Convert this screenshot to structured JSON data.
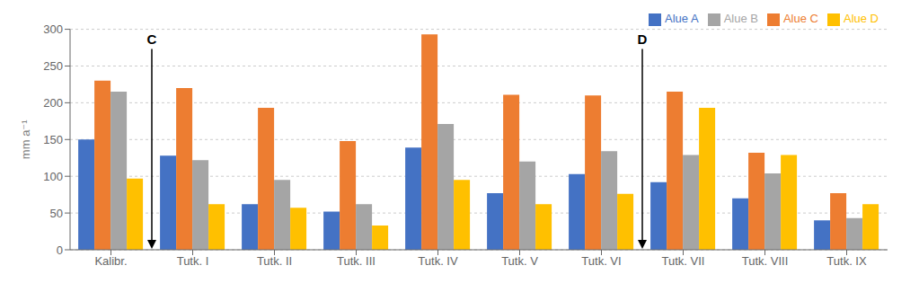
{
  "chart_data": {
    "type": "bar",
    "categories": [
      "Kalibr.",
      "Tutk. I",
      "Tutk. II",
      "Tutk. III",
      "Tutk. IV",
      "Tutk. V",
      "Tutk. VI",
      "Tutk. VII",
      "Tutk. VIII",
      "Tutk. IX"
    ],
    "series": [
      {
        "name": "Alue A",
        "color": "#4472C4",
        "values": [
          150,
          128,
          62,
          52,
          139,
          77,
          103,
          92,
          70,
          40
        ]
      },
      {
        "name": "Alue C",
        "color": "#ED7D31",
        "values": [
          230,
          220,
          193,
          148,
          293,
          211,
          210,
          215,
          132,
          77
        ]
      },
      {
        "name": "Alue B",
        "color": "#A5A5A5",
        "values": [
          215,
          122,
          95,
          62,
          171,
          120,
          134,
          129,
          104,
          43
        ]
      },
      {
        "name": "Alue D",
        "color": "#FFC000",
        "values": [
          97,
          62,
          57,
          33,
          95,
          62,
          76,
          193,
          129,
          62
        ]
      }
    ],
    "ylabel": "mm a⁻¹",
    "ylim": [
      0,
      300
    ],
    "yticks": [
      0,
      50,
      100,
      150,
      200,
      250,
      300
    ],
    "grid": true,
    "legend": "upper right",
    "annotations": [
      {
        "text": "C",
        "between": [
          "Kalibr.",
          "Tutk. I"
        ]
      },
      {
        "text": "D",
        "between": [
          "Tutk. VI",
          "Tutk. VII"
        ]
      }
    ]
  }
}
